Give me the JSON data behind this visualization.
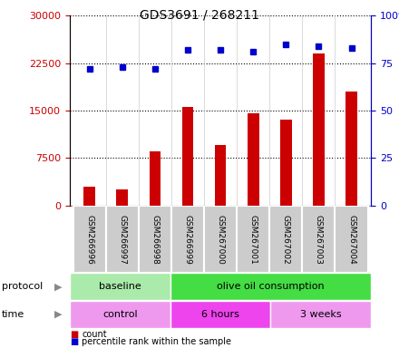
{
  "title": "GDS3691 / 268211",
  "samples": [
    "GSM266996",
    "GSM266997",
    "GSM266998",
    "GSM266999",
    "GSM267000",
    "GSM267001",
    "GSM267002",
    "GSM267003",
    "GSM267004"
  ],
  "counts": [
    3000,
    2500,
    8500,
    15500,
    9500,
    14500,
    13500,
    24000,
    18000
  ],
  "percentiles": [
    72,
    73,
    72,
    82,
    82,
    81,
    85,
    84,
    83
  ],
  "bar_color": "#cc0000",
  "dot_color": "#0000cc",
  "left_ylim": [
    0,
    30000
  ],
  "right_ylim": [
    0,
    100
  ],
  "left_yticks": [
    0,
    7500,
    15000,
    22500,
    30000
  ],
  "right_yticks": [
    0,
    25,
    50,
    75,
    100
  ],
  "right_yticklabels": [
    "0",
    "25",
    "50",
    "75",
    "100%"
  ],
  "protocol_groups": [
    {
      "label": "baseline",
      "start": 0,
      "end": 3,
      "color": "#aaeaaa"
    },
    {
      "label": "olive oil consumption",
      "start": 3,
      "end": 9,
      "color": "#44dd44"
    }
  ],
  "time_groups": [
    {
      "label": "control",
      "start": 0,
      "end": 3,
      "color": "#ee99ee"
    },
    {
      "label": "6 hours",
      "start": 3,
      "end": 6,
      "color": "#ee44ee"
    },
    {
      "label": "3 weeks",
      "start": 6,
      "end": 9,
      "color": "#ee99ee"
    }
  ],
  "legend_items": [
    {
      "label": "count",
      "color": "#cc0000"
    },
    {
      "label": "percentile rank within the sample",
      "color": "#0000cc"
    }
  ],
  "background_color": "#ffffff",
  "plot_bg_color": "#ffffff",
  "tick_label_color_left": "#cc0000",
  "tick_label_color_right": "#0000cc",
  "sample_box_color": "#cccccc",
  "sample_box_border": "#888888"
}
